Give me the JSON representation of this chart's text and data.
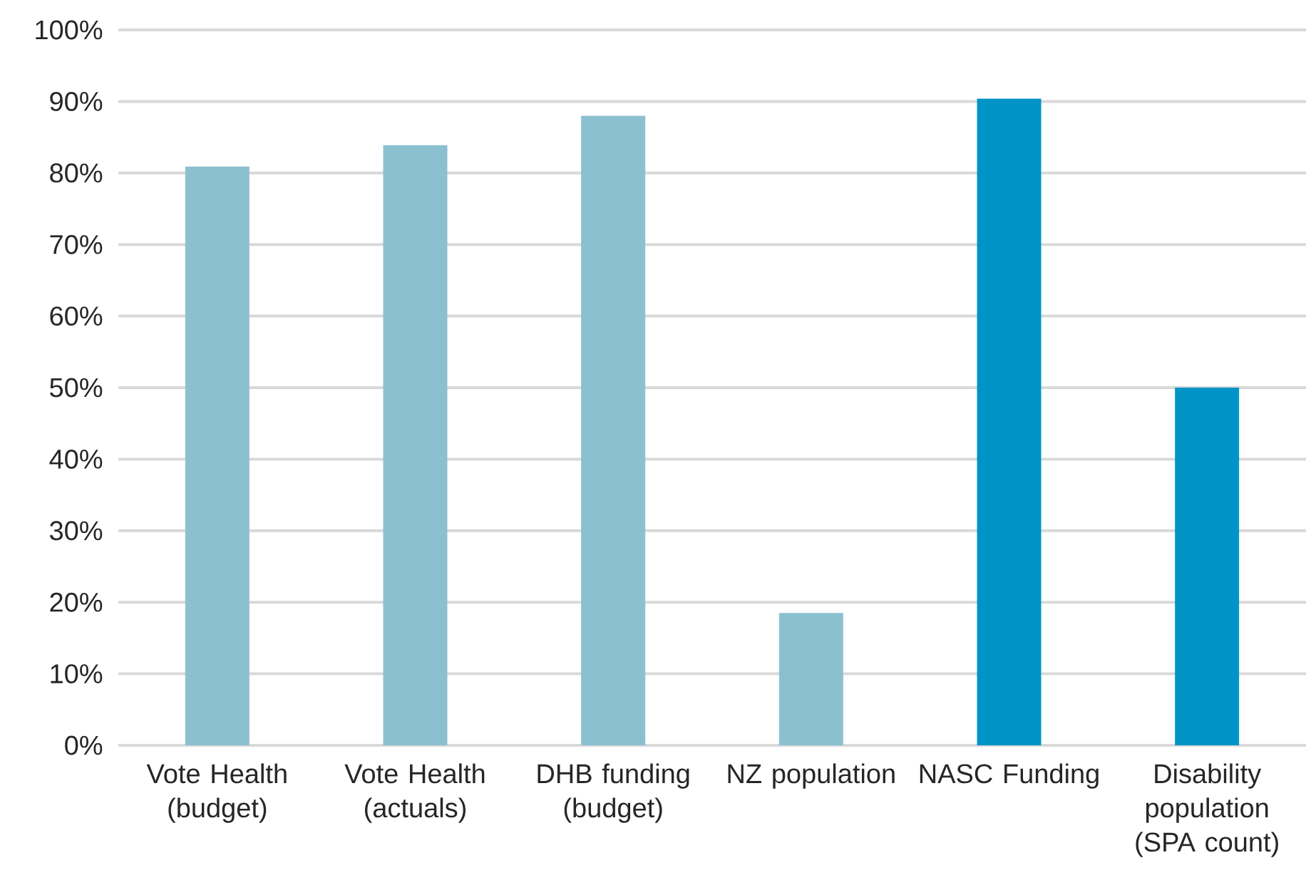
{
  "chart_data": {
    "type": "bar",
    "categories": [
      "Vote Health (budget)",
      "Vote Health (actuals)",
      "DHB funding (budget)",
      "NZ population",
      "NASC Funding",
      "Disability population (SPA count)"
    ],
    "values": [
      80.9,
      83.9,
      88.0,
      18.5,
      90.4,
      50.0
    ],
    "colors": [
      "#8bc0d1",
      "#8bc0d1",
      "#8bc0d1",
      "#8bc0d1",
      "#0094c6",
      "#0094c6"
    ],
    "ylim": [
      0,
      100
    ],
    "yticks": [
      {
        "value": 0,
        "label": "0%"
      },
      {
        "value": 10,
        "label": "10%"
      },
      {
        "value": 20,
        "label": "20%"
      },
      {
        "value": 30,
        "label": "30%"
      },
      {
        "value": 40,
        "label": "40%"
      },
      {
        "value": 50,
        "label": "50%"
      },
      {
        "value": 60,
        "label": "60%"
      },
      {
        "value": 70,
        "label": "70%"
      },
      {
        "value": 80,
        "label": "80%"
      },
      {
        "value": 90,
        "label": "90%"
      },
      {
        "value": 100,
        "label": "100%"
      }
    ],
    "grid": "y"
  }
}
